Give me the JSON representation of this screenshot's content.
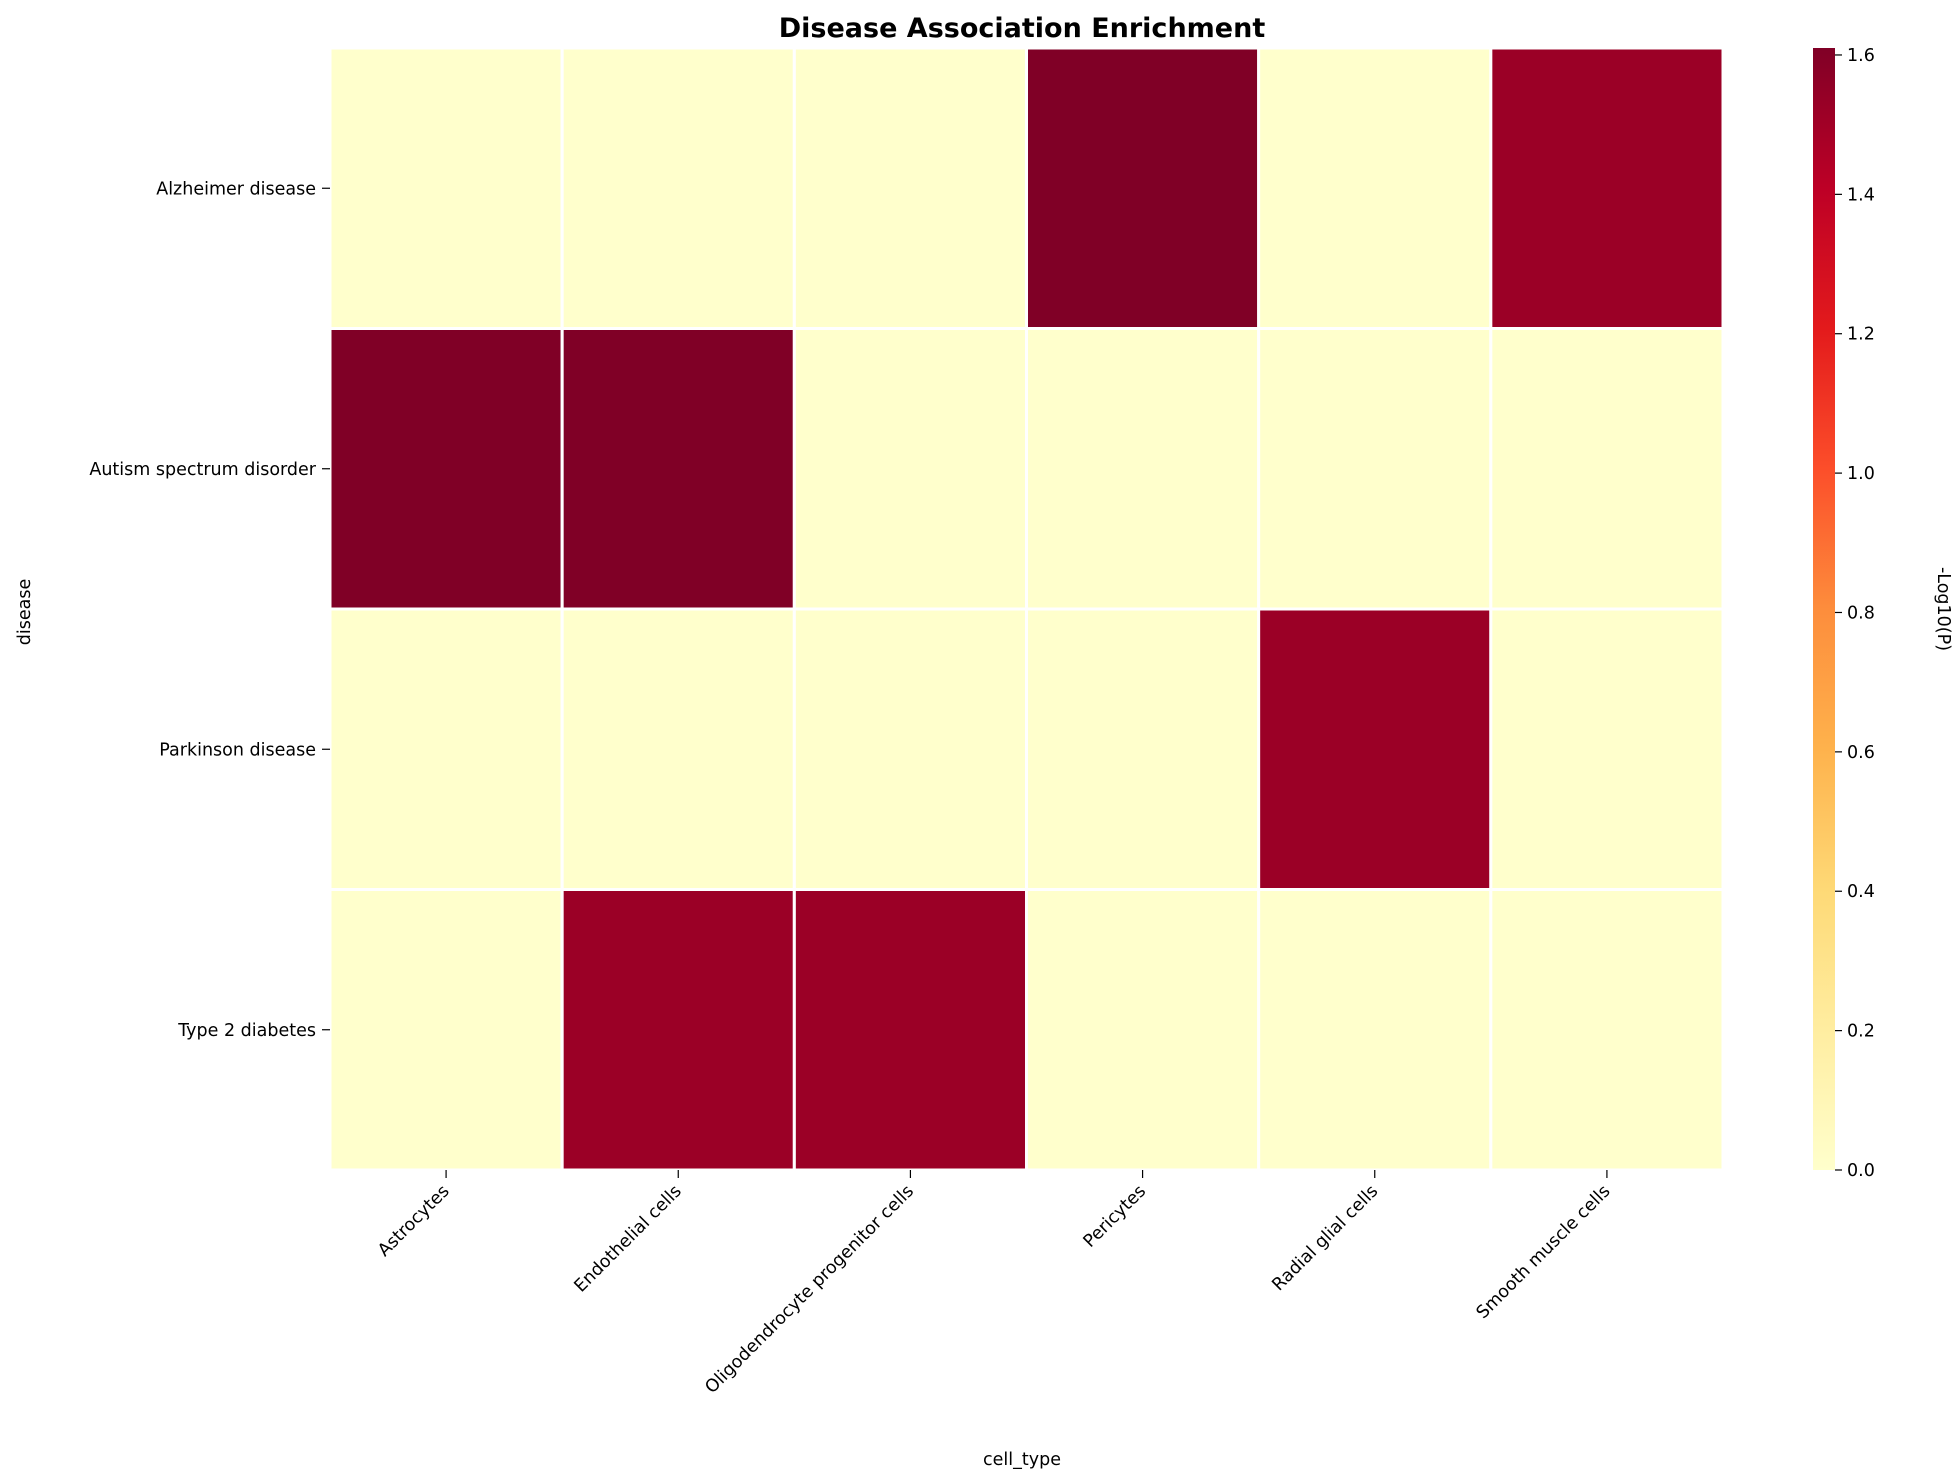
{
  "chart_data": {
    "type": "heatmap",
    "title": "Disease Association Enrichment",
    "xlabel": "cell_type",
    "ylabel": "disease",
    "x_categories": [
      "Astrocytes",
      "Endothelial cells",
      "Oligodendrocyte progenitor cells",
      "Pericytes",
      "Radial glial cells",
      "Smooth muscle cells"
    ],
    "y_categories": [
      "Alzheimer disease",
      "Autism spectrum disorder",
      "Parkinson disease",
      "Type 2 diabetes"
    ],
    "values": [
      [
        0,
        0,
        0,
        1.61,
        0,
        1.52
      ],
      [
        1.61,
        1.61,
        0,
        0,
        0,
        0
      ],
      [
        0,
        0,
        0,
        0,
        1.52,
        0
      ],
      [
        0,
        1.52,
        1.52,
        0,
        0,
        0
      ]
    ],
    "colorbar": {
      "label": "-Log10(P)",
      "range": [
        0,
        1.61
      ],
      "ticks": [
        "0.0",
        "0.2",
        "0.4",
        "0.6",
        "0.8",
        "1.0",
        "1.2",
        "1.4",
        "1.6"
      ],
      "colormap": "YlOrRd",
      "colors": [
        "#ffffcc",
        "#ffeda0",
        "#fed976",
        "#feb24c",
        "#fd8d3c",
        "#fc4e2a",
        "#e31a1c",
        "#bd0026",
        "#800026"
      ]
    },
    "grid": false,
    "cell_border_color": "#ffffff"
  }
}
